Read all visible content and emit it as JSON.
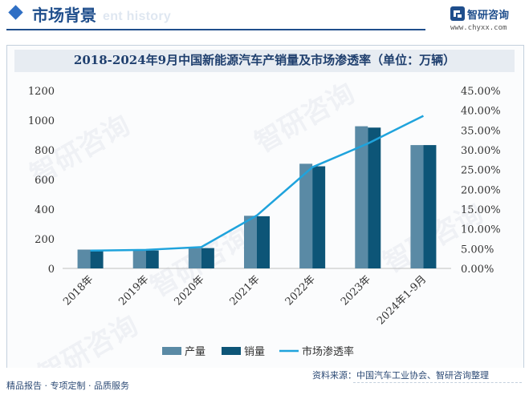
{
  "header": {
    "section_title": "市场背景",
    "section_title_ghost": "ent history",
    "brand_name": "智研咨询",
    "brand_url": "www.chyxx.com"
  },
  "watermark": "智研咨询",
  "chart_data": {
    "type": "bar",
    "title": "2018-2024年9月中国新能源汽车产销量及市场渗透率（单位：万辆）",
    "categories": [
      "2018年",
      "2019年",
      "2020年",
      "2021年",
      "2022年",
      "2023年",
      "2024年1-9月"
    ],
    "series": [
      {
        "name": "产量",
        "type": "bar",
        "color": "#5a8aa5",
        "values": [
          127,
          124,
          137,
          355,
          706,
          959,
          832
        ]
      },
      {
        "name": "销量",
        "type": "bar",
        "color": "#0d5577",
        "values": [
          126,
          121,
          137,
          352,
          689,
          950,
          832
        ]
      },
      {
        "name": "市场渗透率",
        "type": "line",
        "axis": "right",
        "color": "#1fa3dc",
        "values": [
          4.5,
          4.7,
          5.4,
          13.4,
          25.6,
          31.6,
          38.6
        ]
      }
    ],
    "ylim": [
      0,
      1200
    ],
    "y_ticks": [
      "0",
      "200",
      "400",
      "600",
      "800",
      "1000",
      "1200"
    ],
    "y2lim": [
      0,
      45
    ],
    "y2_ticks": [
      "0.00%",
      "5.00%",
      "10.00%",
      "15.00%",
      "20.00%",
      "25.00%",
      "30.00%",
      "35.00%",
      "40.00%",
      "45.00%"
    ],
    "grid": false,
    "legend_position": "bottom"
  },
  "footer": {
    "left": "精品报告 · 专项定制 · 品质服务",
    "right": "资料来源：中国汽车工业协会、智研咨询整理"
  }
}
